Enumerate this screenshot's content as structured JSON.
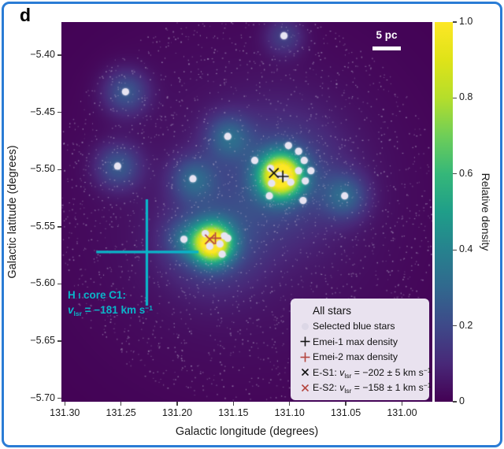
{
  "panel_label": "d",
  "colors": {
    "background": "#440154",
    "border_blue": "#2a7cd5",
    "cyan_annotation": "#0ab5c9",
    "marker_black": "#151515",
    "marker_red": "#b4453e",
    "legend_background": "#e9e2ef",
    "star_fill": "#e7e4f2",
    "field_dot": "#beb4d0",
    "scalebar_white": "#ffffff"
  },
  "scale_bar": {
    "label": "5 pc"
  },
  "hi_core_annotation": {
    "line1": {
      "prefix": "H ",
      "smallcap": "I",
      "rest": " core C1:"
    },
    "line2": {
      "variable": "v",
      "subscript": "lsr",
      "rest": " = −181 km s",
      "superscript": "−1"
    }
  },
  "legend": {
    "title": "All stars",
    "items": [
      {
        "marker": "dot",
        "label": "Selected blue stars"
      },
      {
        "marker": "plus-black",
        "label": "Emei-1 max density"
      },
      {
        "marker": "plus-red",
        "label": "Emei-2 max density"
      },
      {
        "marker": "x-black",
        "label_parts": {
          "prefix": "E-S1: ",
          "variable": "v",
          "subscript": "lsr",
          "rest": " = −202 ± 5 km s",
          "superscript": "−1"
        }
      },
      {
        "marker": "x-red",
        "label_parts": {
          "prefix": "E-S2: ",
          "variable": "v",
          "subscript": "lsr",
          "rest": " = −158 ± 1 km s",
          "superscript": "−1"
        }
      }
    ]
  },
  "chart_data": {
    "type": "scatter-density-map",
    "x_axis": {
      "label": "Galactic longitude (degrees)",
      "range": [
        131.303,
        130.973
      ],
      "reversed": true,
      "ticks": [
        {
          "value": 131.3,
          "label": "131.30"
        },
        {
          "value": 131.25,
          "label": "131.25"
        },
        {
          "value": 131.2,
          "label": "131.20"
        },
        {
          "value": 131.15,
          "label": "131.15"
        },
        {
          "value": 131.1,
          "label": "131.10"
        },
        {
          "value": 131.05,
          "label": "131.05"
        },
        {
          "value": 131.0,
          "label": "131.00"
        }
      ]
    },
    "y_axis": {
      "label": "Galactic latitude (degrees)",
      "range": [
        -5.371,
        -5.703
      ],
      "ticks": [
        {
          "value": -5.4,
          "label": "−5.40"
        },
        {
          "value": -5.45,
          "label": "−5.45"
        },
        {
          "value": -5.5,
          "label": "−5.50"
        },
        {
          "value": -5.55,
          "label": "−5.55"
        },
        {
          "value": -5.6,
          "label": "−5.60"
        },
        {
          "value": -5.65,
          "label": "−5.65"
        },
        {
          "value": -5.7,
          "label": "−5.70"
        }
      ]
    },
    "colorbar": {
      "label": "Relative density",
      "range": [
        0,
        1
      ],
      "colormap": "viridis",
      "ticks": [
        {
          "value": 1.0,
          "label": "1.0"
        },
        {
          "value": 0.8,
          "label": "0.8"
        },
        {
          "value": 0.6,
          "label": "0.6"
        },
        {
          "value": 0.4,
          "label": "0.4"
        },
        {
          "value": 0.2,
          "label": "0.2"
        },
        {
          "value": 0.0,
          "label": "0"
        }
      ],
      "stops": [
        "#440154",
        "#482878",
        "#3e4989",
        "#31688e",
        "#26828e",
        "#1f9e89",
        "#35b779",
        "#6ece58",
        "#b5de2b",
        "#dfe318",
        "#fde725"
      ]
    },
    "density_blobs": [
      {
        "name": "emei1-core",
        "lon": 131.108,
        "lat": -5.505,
        "amp": 1.0,
        "sigma_deg": 0.0133
      },
      {
        "name": "emei1-halo",
        "lon": 131.108,
        "lat": -5.505,
        "amp": 0.18,
        "sigma_deg": 0.0385
      },
      {
        "name": "emei2-core",
        "lon": 131.169,
        "lat": -5.564,
        "amp": 0.95,
        "sigma_deg": 0.0119
      },
      {
        "name": "emei2-halo",
        "lon": 131.169,
        "lat": -5.564,
        "amp": 0.18,
        "sigma_deg": 0.0294
      },
      {
        "name": "field-glow",
        "lon": 131.14,
        "lat": -5.532,
        "amp": 0.06,
        "sigma_deg": 0.105
      },
      {
        "name": "star-halo",
        "lon": 131.246,
        "lat": -5.432,
        "amp": 0.22,
        "sigma_deg": 0.014
      },
      {
        "name": "star-halo",
        "lon": 131.253,
        "lat": -5.497,
        "amp": 0.22,
        "sigma_deg": 0.014
      },
      {
        "name": "star-halo",
        "lon": 131.186,
        "lat": -5.508,
        "amp": 0.22,
        "sigma_deg": 0.014
      },
      {
        "name": "star-halo",
        "lon": 131.155,
        "lat": -5.471,
        "amp": 0.22,
        "sigma_deg": 0.014
      },
      {
        "name": "star-halo",
        "lon": 131.105,
        "lat": -5.383,
        "amp": 0.15,
        "sigma_deg": 0.012
      },
      {
        "name": "star-halo",
        "lon": 131.051,
        "lat": -5.523,
        "amp": 0.22,
        "sigma_deg": 0.014
      },
      {
        "name": "star-halo",
        "lon": 131.194,
        "lat": -5.561,
        "amp": 0.15,
        "sigma_deg": 0.012
      }
    ],
    "selected_blue_stars": [
      [
        131.246,
        -5.432
      ],
      [
        131.253,
        -5.497
      ],
      [
        131.186,
        -5.508
      ],
      [
        131.155,
        -5.471
      ],
      [
        131.105,
        -5.383
      ],
      [
        131.051,
        -5.523
      ],
      [
        131.194,
        -5.561
      ],
      [
        131.101,
        -5.479
      ],
      [
        131.092,
        -5.484
      ],
      [
        131.131,
        -5.492
      ],
      [
        131.087,
        -5.492
      ],
      [
        131.117,
        -5.499
      ],
      [
        131.092,
        -5.501
      ],
      [
        131.081,
        -5.501
      ],
      [
        131.109,
        -5.505
      ],
      [
        131.104,
        -5.507
      ],
      [
        131.099,
        -5.511
      ],
      [
        131.086,
        -5.51
      ],
      [
        131.116,
        -5.512
      ],
      [
        131.118,
        -5.523
      ],
      [
        131.088,
        -5.527
      ],
      [
        131.175,
        -5.556
      ],
      [
        131.158,
        -5.558
      ],
      [
        131.155,
        -5.56
      ],
      [
        131.162,
        -5.565
      ],
      [
        131.171,
        -5.567
      ],
      [
        131.16,
        -5.574
      ]
    ],
    "markers": [
      {
        "name": "E-S1",
        "symbol": "x",
        "color": "#151515",
        "lon": 131.114,
        "lat": -5.503
      },
      {
        "name": "Emei-1 max density",
        "symbol": "plus",
        "color": "#151515",
        "lon": 131.106,
        "lat": -5.506
      },
      {
        "name": "E-S2",
        "symbol": "x",
        "color": "#b4453e",
        "lon": 131.171,
        "lat": -5.561
      },
      {
        "name": "Emei-2 max density",
        "symbol": "plus",
        "color": "#b4453e",
        "lon": 131.166,
        "lat": -5.56
      }
    ],
    "hi_core_cross": {
      "center": [
        131.227,
        -5.572
      ],
      "lon_arm": [
        131.272,
        131.181
      ],
      "lat_arm": [
        -5.526,
        -5.619
      ],
      "color": "#0ab5c9"
    },
    "field_stars": {
      "count": 2600,
      "center": [
        131.1405,
        -5.5324
      ],
      "radius_deg": 0.175,
      "seed": 42,
      "extra_clusters": [
        {
          "lon": 131.108,
          "lat": -5.505,
          "count": 170,
          "sigma_deg": 0.02
        },
        {
          "lon": 131.169,
          "lat": -5.564,
          "count": 120,
          "sigma_deg": 0.014
        }
      ]
    }
  }
}
